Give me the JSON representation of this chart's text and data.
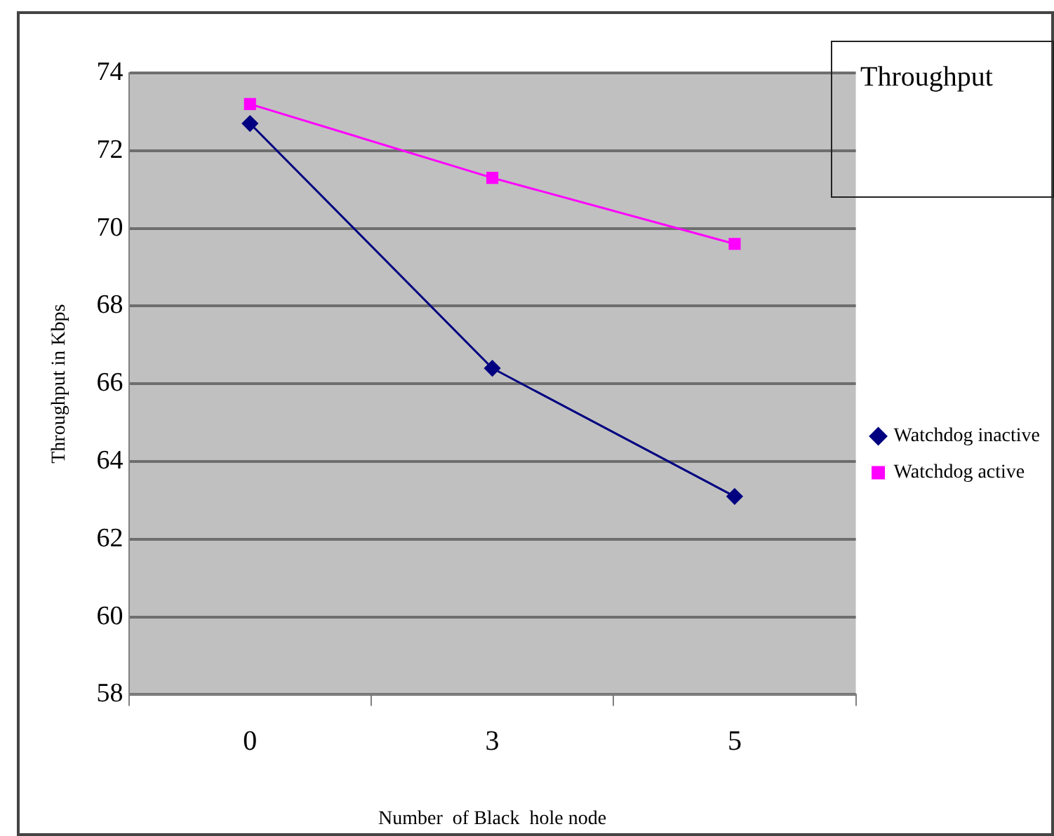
{
  "chart_data": {
    "type": "line",
    "title": "Throughput",
    "xlabel": "Number  of Black  hole node",
    "ylabel": "Throughput in Kbps",
    "categories": [
      "0",
      "3",
      "5"
    ],
    "series": [
      {
        "name": "Watchdog inactive",
        "color": "#000080",
        "marker": "diamond",
        "values": [
          72.7,
          66.4,
          63.1
        ]
      },
      {
        "name": "Watchdog active",
        "color": "#ff00ff",
        "marker": "square",
        "values": [
          73.2,
          71.3,
          69.6
        ]
      }
    ],
    "ylim": [
      58,
      74
    ],
    "yticks": [
      58,
      60,
      62,
      64,
      66,
      68,
      70,
      72,
      74
    ],
    "grid": "y",
    "legend": "right",
    "line_style": "solid"
  }
}
